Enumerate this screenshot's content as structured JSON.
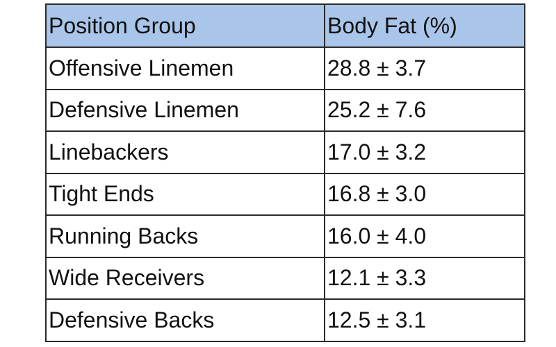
{
  "table": {
    "header": [
      "Position Group",
      "Body Fat (%)"
    ],
    "rows": [
      [
        "Offensive Linemen",
        "28.8 ± 3.7"
      ],
      [
        "Defensive Linemen",
        "25.2 ± 7.6"
      ],
      [
        "Linebackers",
        "17.0 ± 3.2"
      ],
      [
        "Tight Ends",
        "16.8 ± 3.0"
      ],
      [
        "Running Backs",
        "16.0 ± 4.0"
      ],
      [
        "Wide Receivers",
        "12.1 ± 3.3"
      ],
      [
        "Defensive Backs",
        "12.5 ± 3.1"
      ]
    ]
  }
}
